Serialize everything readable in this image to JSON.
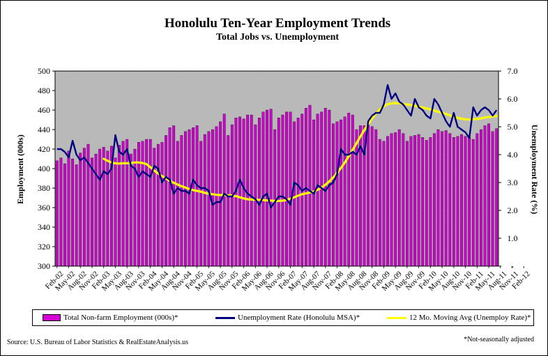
{
  "header": {
    "title": "Honolulu Ten-Year Employment Trends",
    "subtitle": "Total Jobs vs. Unemployment"
  },
  "legend": {
    "employment": "Total Non-farm Employment (000s)*",
    "unemployment": "Unemployment Rate (Honolulu MSA)*",
    "moving_avg": "12 Mo. Moving Avg (Unemploy Rate)*"
  },
  "footer": {
    "source": "Source: U.S. Bureau of Labor Statistics & RealEstateAnalysis.us",
    "note": "*Not-seasonally adjusted"
  },
  "colors": {
    "employment": "#d400d4",
    "unemployment": "#000080",
    "moving_avg": "#ffff00",
    "plot_background": "#c0c0c0"
  },
  "chart_data": {
    "type": "bar",
    "title": "Honolulu Ten-Year Employment Trends",
    "subtitle": "Total Jobs vs. Unemployment",
    "ylabel": "Employment (000s)",
    "y2label": "Unemployment Rate (%)",
    "ylim": [
      300,
      500
    ],
    "y2lim": [
      0,
      7
    ],
    "y_ticks": [
      "300",
      "320",
      "340",
      "360",
      "380",
      "400",
      "420",
      "440",
      "460",
      "480",
      "500"
    ],
    "y2_ticks": [
      "-",
      "1.0",
      "2.0",
      "3.0",
      "4.0",
      "5.0",
      "6.0",
      "7.0"
    ],
    "x_tick_labels": [
      "Feb-02",
      "May-02",
      "Aug-02",
      "Nov-02",
      "Feb-03",
      "May-03",
      "Aug-03",
      "Nov-03",
      "Feb-04",
      "May-04",
      "Aug-04",
      "Nov-04",
      "Feb-05",
      "May-05",
      "Aug-05",
      "Nov-05",
      "Feb-06",
      "May-06",
      "Aug-06",
      "Nov-06",
      "Feb-07",
      "May-07",
      "Aug-07",
      "Nov-07",
      "Feb-08",
      "May-08",
      "Aug-08",
      "Nov-08",
      "Feb-09",
      "May-09",
      "Aug-09",
      "Nov-09",
      "Feb-10",
      "May-10",
      "Aug-10",
      "Nov-10",
      "Feb-11",
      "May-11",
      "Aug-11",
      "Nov-11",
      "Feb-12"
    ],
    "grid": false,
    "legend_position": "bottom",
    "start_month": "Feb-02",
    "series": [
      {
        "name": "Total Non-farm Employment (000s)*",
        "type": "bar",
        "axis": "left",
        "values": [
          408,
          411,
          405,
          418,
          410,
          404,
          416,
          421,
          425,
          411,
          415,
          420,
          422,
          418,
          423,
          411,
          424,
          428,
          430,
          415,
          420,
          427,
          428,
          430,
          430,
          421,
          425,
          427,
          434,
          442,
          444,
          428,
          434,
          438,
          440,
          442,
          444,
          428,
          435,
          438,
          440,
          443,
          448,
          456,
          434,
          445,
          452,
          453,
          451,
          455,
          455,
          445,
          452,
          458,
          460,
          461,
          440,
          452,
          455,
          458,
          458,
          448,
          452,
          456,
          462,
          465,
          450,
          456,
          458,
          462,
          460,
          446,
          448,
          450,
          453,
          457,
          455,
          440,
          444,
          444,
          445,
          443,
          440,
          430,
          428,
          433,
          436,
          437,
          440,
          436,
          428,
          433,
          434,
          435,
          432,
          429,
          432,
          436,
          440,
          438,
          439,
          436,
          432,
          433,
          435,
          433,
          432,
          430,
          436,
          440,
          444,
          446,
          438,
          441
        ]
      },
      {
        "name": "Unemployment Rate (Honolulu MSA)*",
        "type": "line",
        "axis": "right",
        "values": [
          4.2,
          4.2,
          4.1,
          3.9,
          4.5,
          4.0,
          3.8,
          3.9,
          3.7,
          3.5,
          3.3,
          3.1,
          3.4,
          3.3,
          3.5,
          4.7,
          4.1,
          4.0,
          4.2,
          3.6,
          3.5,
          3.2,
          3.4,
          3.3,
          3.2,
          3.6,
          3.5,
          3.0,
          3.2,
          3.1,
          2.6,
          2.8,
          2.7,
          2.7,
          2.6,
          3.1,
          2.9,
          2.8,
          2.8,
          2.7,
          2.2,
          2.3,
          2.3,
          2.6,
          2.5,
          2.5,
          2.7,
          3.1,
          2.8,
          2.6,
          2.5,
          2.4,
          2.2,
          2.5,
          2.6,
          2.1,
          2.3,
          2.5,
          2.5,
          2.4,
          2.2,
          3.0,
          2.9,
          2.7,
          2.8,
          2.7,
          2.6,
          2.9,
          2.8,
          2.7,
          2.9,
          3.0,
          3.3,
          4.2,
          4.0,
          4.0,
          4.1,
          4.0,
          4.3,
          4.0,
          5.2,
          5.4,
          5.5,
          5.5,
          5.8,
          6.5,
          6.0,
          6.2,
          5.9,
          5.8,
          5.6,
          5.4,
          6.0,
          5.7,
          5.6,
          5.4,
          5.3,
          6.0,
          5.8,
          5.5,
          5.2,
          5.0,
          5.5,
          5.0,
          4.9,
          4.8,
          4.6,
          5.7,
          5.4,
          5.6,
          5.7,
          5.6,
          5.4,
          5.6
        ]
      },
      {
        "name": "12 Mo. Moving Avg (Unemploy Rate)*",
        "type": "line",
        "axis": "right",
        "values": [
          null,
          null,
          null,
          null,
          null,
          null,
          null,
          null,
          null,
          null,
          null,
          null,
          3.85,
          3.78,
          3.72,
          3.69,
          3.68,
          3.69,
          3.69,
          3.7,
          3.72,
          3.72,
          3.7,
          3.66,
          3.55,
          3.43,
          3.32,
          3.23,
          3.14,
          3.06,
          2.99,
          2.93,
          2.87,
          2.82,
          2.77,
          2.73,
          2.7,
          2.67,
          2.63,
          2.6,
          2.58,
          2.56,
          2.55,
          2.55,
          2.54,
          2.54,
          2.51,
          2.47,
          2.43,
          2.4,
          2.39,
          2.38,
          2.38,
          2.37,
          2.36,
          2.35,
          2.34,
          2.34,
          2.35,
          2.38,
          2.42,
          2.47,
          2.53,
          2.58,
          2.61,
          2.64,
          2.68,
          2.74,
          2.82,
          2.92,
          3.04,
          3.18,
          3.34,
          3.52,
          3.72,
          3.94,
          4.17,
          4.41,
          4.65,
          4.88,
          5.1,
          5.3,
          5.48,
          5.63,
          5.74,
          5.81,
          5.84,
          5.85,
          5.84,
          5.82,
          5.8,
          5.78,
          5.75,
          5.72,
          5.69,
          5.66,
          5.62,
          5.58,
          5.54,
          5.5,
          5.46,
          5.41,
          5.36,
          5.32,
          5.29,
          5.27,
          5.26,
          5.27,
          5.28,
          5.3,
          5.33,
          5.35,
          5.37,
          5.39
        ]
      }
    ]
  }
}
